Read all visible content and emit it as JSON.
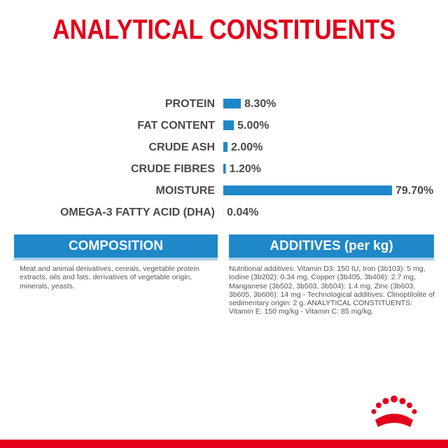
{
  "chart_data": {
    "type": "bar",
    "orientation": "horizontal",
    "title": "ANALYTICAL CONSTITUENTS",
    "categories": [
      "PROTEIN",
      "FAT CONTENT",
      "CRUDE ASH",
      "CRUDE FIBRES",
      "MOISTURE",
      "OMEGA-3 FATTY ACID (DHA)"
    ],
    "values": [
      8.3,
      5.0,
      2.0,
      1.2,
      79.7,
      0.04
    ],
    "value_labels": [
      "8.30%",
      "5.00%",
      "2.00%",
      "1.20%",
      "79.70%",
      "0.04%"
    ],
    "color": "#1f88c9"
  },
  "composition": {
    "heading": "COMPOSITION",
    "text": "Meat and animal derivatives, cereals, vegetable protein extracts, oils and fats, derivatives of vegetable origin, minerals, yeasts."
  },
  "additives": {
    "heading": "ADDITIVES (per kg)",
    "text": "Nutritional additives: Vitamin D3: 150 IU, Iron (3b103): 5 mg, Iodine (3b202): 0.34 mg, Copper (3b405, 3b406): 2.7 mg, Manganese (3b502, 3b503, 3b504): 1.4 mg, Zinc (3b603, 3b605, 3b606): 14 mg - Technological additives: Clinoptilolite of sedimentary origin: 2 g. ANALYTICAL CONSTITUENTS: Vitamin E: 150 mg/kg - Vitamin C: 85 mg/kg."
  }
}
